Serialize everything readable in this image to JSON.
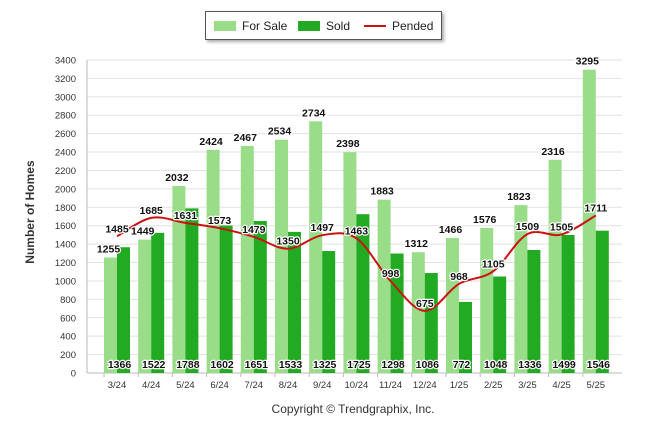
{
  "chart_data": {
    "type": "bar",
    "categories": [
      "3/24",
      "4/24",
      "5/24",
      "6/24",
      "7/24",
      "8/24",
      "9/24",
      "10/24",
      "11/24",
      "12/24",
      "1/25",
      "2/25",
      "3/25",
      "4/25",
      "5/25"
    ],
    "series": [
      {
        "name": "For Sale",
        "type": "bar",
        "color": "#99dd88",
        "values": [
          1255,
          1449,
          2032,
          2424,
          2467,
          2534,
          2734,
          2398,
          1883,
          1312,
          1466,
          1576,
          1823,
          2316,
          3295
        ]
      },
      {
        "name": "Sold",
        "type": "bar",
        "color": "#22aa22",
        "values": [
          1366,
          1522,
          1788,
          1602,
          1651,
          1533,
          1325,
          1725,
          1298,
          1086,
          772,
          1048,
          1336,
          1499,
          1546
        ]
      },
      {
        "name": "Pended",
        "type": "line",
        "color": "#cc1111",
        "values": [
          1485,
          1685,
          1631,
          1573,
          1479,
          1350,
          1497,
          1463,
          998,
          675,
          968,
          1105,
          1509,
          1505,
          1711
        ]
      }
    ],
    "ylabel": "Number of Homes",
    "ylim": [
      0,
      3400
    ],
    "yticks": [
      0,
      200,
      400,
      600,
      800,
      1000,
      1200,
      1400,
      1600,
      1800,
      2000,
      2200,
      2400,
      2600,
      2800,
      3000,
      3200,
      3400
    ],
    "grid": true,
    "legend": "top-center"
  },
  "legend": {
    "for_sale": "For Sale",
    "sold": "Sold",
    "pended": "Pended"
  },
  "footer": {
    "copyright": "Copyright © Trendgraphix, Inc."
  }
}
